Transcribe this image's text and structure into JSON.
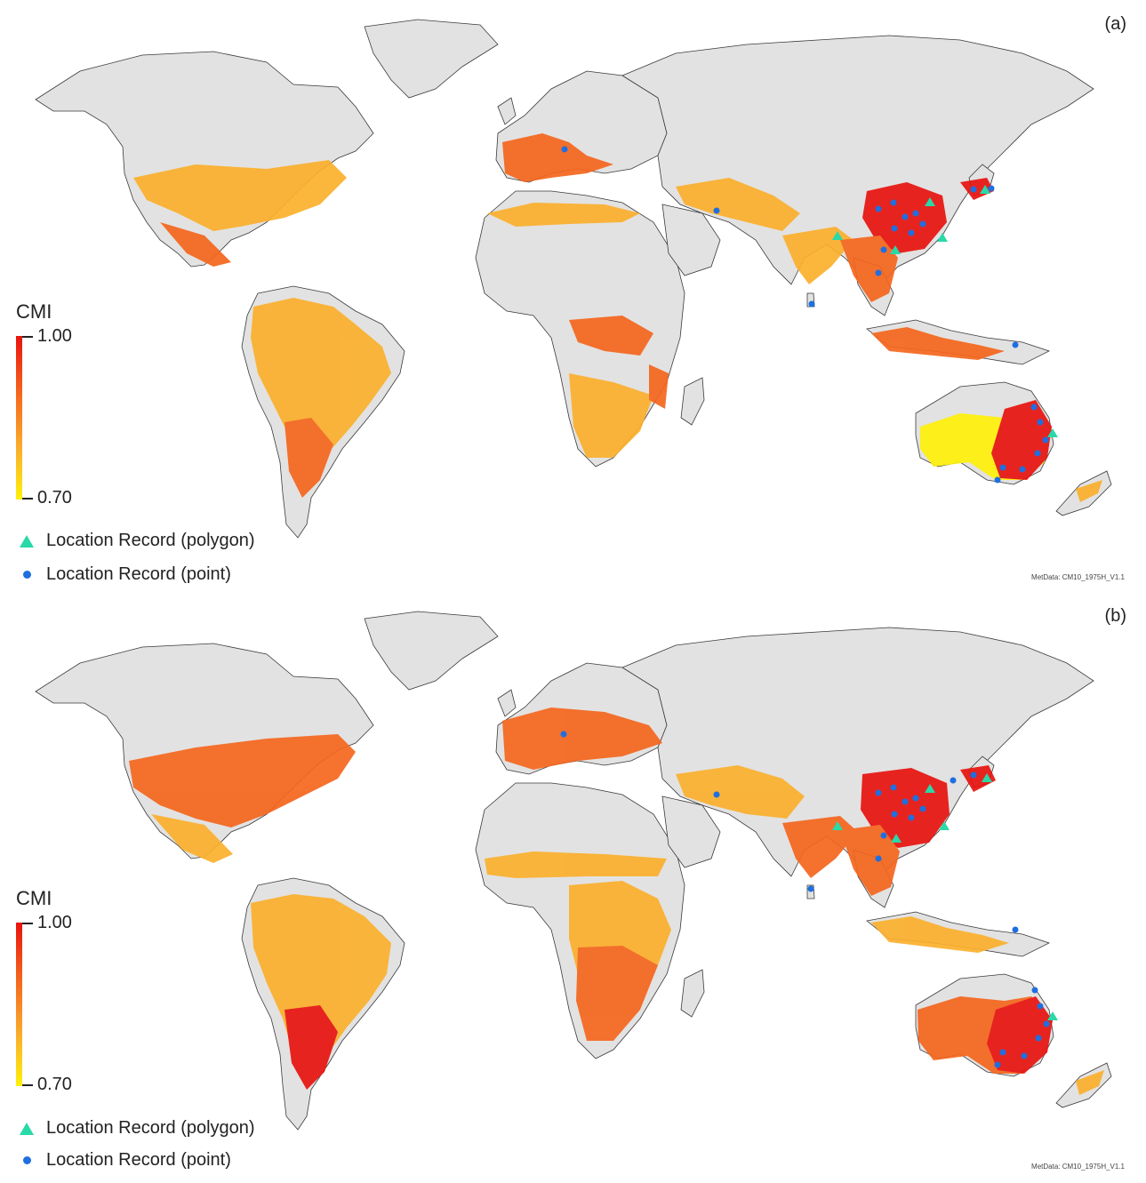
{
  "panels": [
    {
      "label": "(a)",
      "legend": {
        "title": "CMI",
        "max_label": "1.00",
        "min_label": "0.70",
        "polygon_label": "Location Record (polygon)",
        "point_label": "Location Record (point)"
      },
      "metadata": "MetData: CM10_1975H_V1.1"
    },
    {
      "label": "(b)",
      "legend": {
        "title": "CMI",
        "max_label": "1.00",
        "min_label": "0.70",
        "polygon_label": "Location Record (polygon)",
        "point_label": "Location Record (point)"
      },
      "metadata": "MetData: CM10_1975H_V1.1"
    }
  ],
  "colors": {
    "land": "#e2e2e2",
    "border": "#3a3a3a",
    "cmi_high": "#e8130f",
    "cmi_mid": "#f5661d",
    "cmi_low": "#fff10a",
    "polygon_marker": "#29d9a8",
    "point_marker": "#1f6fe0"
  }
}
